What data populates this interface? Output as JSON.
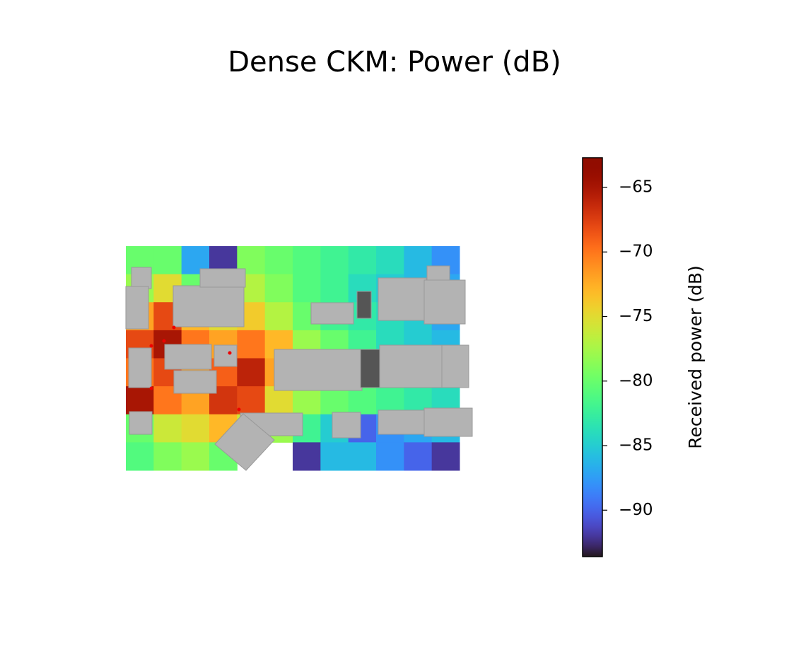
{
  "chart_data": {
    "type": "heatmap",
    "title": "Dense CKM: Power (dB)",
    "colorbar_label": "Received power (dB)",
    "colormap": "turbo",
    "clim": [
      -93.6,
      -62.7
    ],
    "cticks": [
      {
        "value": -65,
        "label": "−65"
      },
      {
        "value": -70,
        "label": "−70"
      },
      {
        "value": -75,
        "label": "−75"
      },
      {
        "value": -80,
        "label": "−80"
      },
      {
        "value": -85,
        "label": "−85"
      },
      {
        "value": -90,
        "label": "−90"
      }
    ],
    "values": [
      [
        -80,
        -80,
        -87,
        -92,
        -79,
        -80,
        -81,
        -82,
        -83,
        -84,
        -86,
        -88
      ],
      [
        -78,
        -75,
        -80,
        -82,
        -77,
        -79,
        -81,
        -82,
        -84,
        -85,
        -86,
        -87
      ],
      [
        -72,
        -68,
        -73,
        -75,
        -74,
        -77,
        -80,
        -82,
        -83,
        -84,
        -85,
        -87
      ],
      [
        -68,
        -65,
        -70,
        -72,
        -70,
        -73,
        -78,
        -80,
        -82,
        -84,
        -85,
        -86
      ],
      [
        -70,
        -68,
        -72,
        -69,
        -66,
        -72,
        -77,
        -79,
        -81,
        -83,
        -84,
        -85
      ],
      [
        -65,
        -70,
        -72,
        -67,
        -68,
        -75,
        -78,
        -80,
        -81,
        -82,
        -83,
        -84
      ],
      [
        -80,
        -76,
        -75,
        -73,
        -76,
        -78,
        -82,
        -85,
        -90,
        -88,
        -87,
        -86
      ],
      [
        -81,
        -79,
        -78,
        -80,
        null,
        null,
        -92,
        -86,
        -86,
        -88,
        -90,
        -92
      ]
    ]
  }
}
